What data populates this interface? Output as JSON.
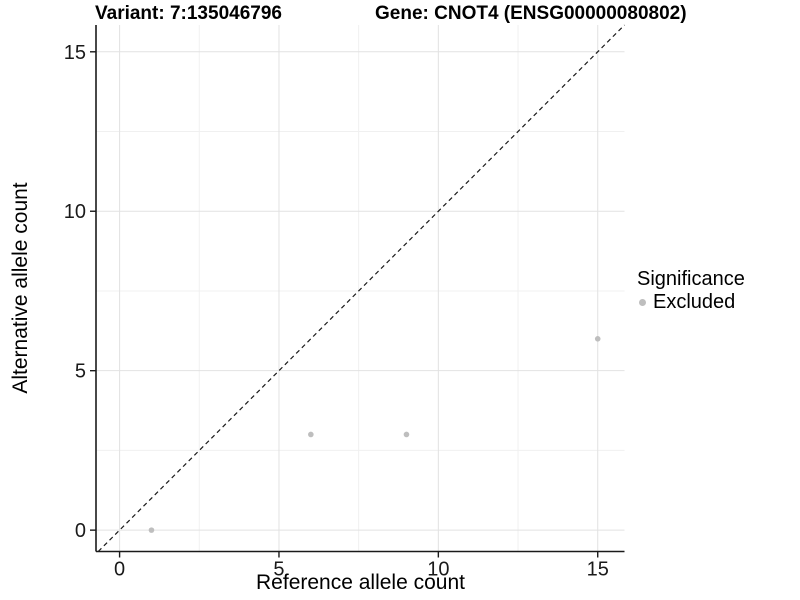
{
  "titles": {
    "variant": "Variant: 7:135046796",
    "gene": "Gene: CNOT4 (ENSG00000080802)"
  },
  "legend": {
    "title": "Significance",
    "items": [
      {
        "label": "Excluded",
        "color": "#bebebe"
      }
    ]
  },
  "chart_data": {
    "type": "scatter",
    "title_left": "Variant: 7:135046796",
    "title_right": "Gene: CNOT4 (ENSG00000080802)",
    "xlabel": "Reference allele count",
    "ylabel": "Alternative allele count",
    "xlim": [
      -0.74,
      15.84
    ],
    "ylim": [
      -0.67,
      15.84
    ],
    "xticks": [
      0,
      5,
      10,
      15
    ],
    "yticks": [
      0,
      5,
      10,
      15
    ],
    "minor_xticks": [
      2.5,
      7.5,
      12.5
    ],
    "minor_yticks": [
      2.5,
      7.5,
      12.5
    ],
    "grid": {
      "major": true,
      "minor": true
    },
    "legend_title": "Significance",
    "legend_position": "right",
    "series": [
      {
        "name": "Excluded",
        "color": "#bebebe",
        "points": [
          [
            1,
            0
          ],
          [
            6,
            3
          ],
          [
            9,
            3
          ],
          [
            15,
            6
          ]
        ]
      }
    ],
    "reference_line": {
      "equation": "y = x",
      "style": "dashed",
      "color": "#1a1a1a"
    }
  },
  "colors": {
    "background": "#ffffff",
    "grid_major": "#e2e2e2",
    "grid_minor": "#f0f0f0",
    "axis_line": "#1a1a1a",
    "tick_text": "#1a1a1a",
    "point": "#bebebe"
  }
}
